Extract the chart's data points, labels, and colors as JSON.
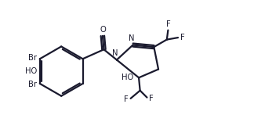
{
  "bg_color": "#ffffff",
  "line_color": "#1a1a2e",
  "line_width": 1.6,
  "font_size": 7.2,
  "figsize": [
    3.24,
    1.79
  ],
  "dpi": 100,
  "xlim": [
    0.0,
    10.2
  ],
  "ylim": [
    0.8,
    6.2
  ]
}
